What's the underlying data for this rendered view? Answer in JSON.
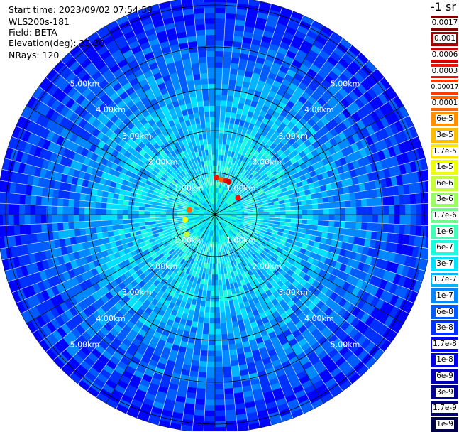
{
  "info": {
    "start_time": "Start time: 2023/09/02 07:54:59",
    "device": "WLS200s-181",
    "field": "Field: BETA",
    "elevation": "Elevation(deg): 35.30",
    "nrays": "NRays: 120"
  },
  "chart_data": {
    "type": "polar-ppi",
    "field": "BETA",
    "nrays": 120,
    "elevation_deg": 35.3,
    "range_rings_km": [
      1,
      2,
      3,
      4,
      5
    ],
    "range_labels": [
      "1.00km",
      "2.00km",
      "3.00km",
      "4.00km",
      "5.00km"
    ],
    "max_range_km": 5.2,
    "spokes_deg": [
      0,
      30,
      60,
      90,
      120,
      150,
      180,
      210,
      240,
      270,
      300,
      330
    ],
    "hotspots": [
      {
        "range_km": 0.88,
        "azimuth_deg": 2,
        "value": 0.0003
      },
      {
        "range_km": 0.85,
        "azimuth_deg": 10,
        "value": 0.0001
      },
      {
        "range_km": 0.85,
        "azimuth_deg": 18,
        "value": 0.0003
      },
      {
        "range_km": 0.85,
        "azimuth_deg": 23,
        "value": 0.0006
      },
      {
        "range_km": 0.68,
        "azimuth_deg": 54,
        "value": 0.0003
      },
      {
        "range_km": 0.82,
        "azimuth_deg": 235,
        "value": 6e-06
      },
      {
        "range_km": 0.72,
        "azimuth_deg": 260,
        "value": 1e-05
      },
      {
        "range_km": 0.62,
        "azimuth_deg": 280,
        "value": 0.0001
      }
    ],
    "colorbar": {
      "title": "-1 sr",
      "labels": [
        "0.0017",
        "0.001",
        "0.0006",
        "0.0003",
        "0.00017",
        "0.0001",
        "6e-5",
        "3e-5",
        "1.7e-5",
        "1e-5",
        "6e-6",
        "3e-6",
        "1.7e-6",
        "1e-6",
        "6e-7",
        "3e-7",
        "1.7e-7",
        "1e-7",
        "6e-8",
        "3e-8",
        "1.7e-8",
        "1e-8",
        "6e-9",
        "3e-9",
        "1.7e-9",
        "1e-9"
      ],
      "colors": [
        "#7f0000",
        "#a80000",
        "#d20000",
        "#fa0f00",
        "#ff3a00",
        "#ff6500",
        "#ff9000",
        "#ffbb00",
        "#ffe600",
        "#eeff09",
        "#c3ff34",
        "#98ff5f",
        "#6dff8a",
        "#42ffb5",
        "#17ffe0",
        "#00e0ff",
        "#00b4ff",
        "#0088ff",
        "#005cff",
        "#0030ff",
        "#0004ff",
        "#0000e4",
        "#0000bd",
        "#000096",
        "#00006f",
        "#000048"
      ]
    }
  }
}
